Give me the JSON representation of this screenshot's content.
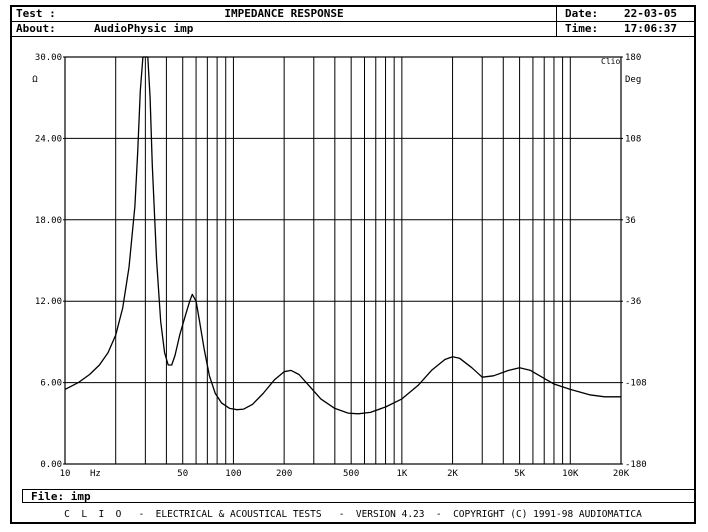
{
  "header": {
    "test_label": "Test :",
    "title": "IMPEDANCE RESPONSE",
    "about_label": "About:",
    "about_value": "AudioPhysic imp",
    "date_label": "Date:",
    "date_value": "22-03-05",
    "time_label": "Time:",
    "time_value": "17:06:37"
  },
  "file": {
    "label": "File:",
    "value": "imp"
  },
  "footer": "C  L  I  O   -  ELECTRICAL & ACOUSTICAL TESTS   -  VERSION 4.23  -  COPYRIGHT (C) 1991-98 AUDIOMATICA",
  "chart_data": {
    "type": "line",
    "title": "IMPEDANCE RESPONSE",
    "brand_label": "Clio",
    "x_scale": "log",
    "xlim": [
      10,
      20000
    ],
    "ylim": [
      0,
      30
    ],
    "y2lim": [
      -180,
      180
    ],
    "x_ticks": [
      {
        "v": 10,
        "label": "10"
      },
      {
        "v": 50,
        "label": "50"
      },
      {
        "v": 100,
        "label": "100"
      },
      {
        "v": 200,
        "label": "200"
      },
      {
        "v": 500,
        "label": "500"
      },
      {
        "v": 1000,
        "label": "1K"
      },
      {
        "v": 2000,
        "label": "2K"
      },
      {
        "v": 5000,
        "label": "5K"
      },
      {
        "v": 10000,
        "label": "10K"
      },
      {
        "v": 20000,
        "label": "20K"
      }
    ],
    "x_unit": "Hz",
    "y_ticks": [
      "0.00",
      "6.00",
      "12.00",
      "18.00",
      "24.00",
      "30.00"
    ],
    "y_unit": "Ω",
    "y2_ticks": [
      "-180",
      "-108",
      "-36",
      "36",
      "108",
      "180"
    ],
    "y2_unit": "Deg",
    "grid": true,
    "series": [
      {
        "points": [
          [
            10,
            5.5
          ],
          [
            12,
            6.0
          ],
          [
            14,
            6.6
          ],
          [
            16,
            7.3
          ],
          [
            18,
            8.2
          ],
          [
            20,
            9.5
          ],
          [
            22,
            11.5
          ],
          [
            24,
            14.5
          ],
          [
            26,
            19.0
          ],
          [
            27,
            23.0
          ],
          [
            28,
            27.5
          ],
          [
            29,
            30.0
          ],
          [
            31,
            30.0
          ],
          [
            32,
            27.0
          ],
          [
            33,
            22.0
          ],
          [
            35,
            15.0
          ],
          [
            37,
            10.5
          ],
          [
            39,
            8.2
          ],
          [
            41,
            7.3
          ],
          [
            43,
            7.3
          ],
          [
            45,
            8.0
          ],
          [
            48,
            9.5
          ],
          [
            52,
            11.0
          ],
          [
            55,
            12.0
          ],
          [
            57,
            12.5
          ],
          [
            60,
            12.0
          ],
          [
            63,
            10.5
          ],
          [
            67,
            8.5
          ],
          [
            72,
            6.5
          ],
          [
            78,
            5.2
          ],
          [
            85,
            4.5
          ],
          [
            95,
            4.1
          ],
          [
            105,
            4.0
          ],
          [
            115,
            4.05
          ],
          [
            130,
            4.4
          ],
          [
            150,
            5.2
          ],
          [
            175,
            6.2
          ],
          [
            200,
            6.8
          ],
          [
            220,
            6.9
          ],
          [
            245,
            6.6
          ],
          [
            280,
            5.8
          ],
          [
            330,
            4.8
          ],
          [
            400,
            4.1
          ],
          [
            480,
            3.75
          ],
          [
            550,
            3.7
          ],
          [
            650,
            3.8
          ],
          [
            800,
            4.2
          ],
          [
            1000,
            4.8
          ],
          [
            1250,
            5.8
          ],
          [
            1500,
            6.9
          ],
          [
            1800,
            7.7
          ],
          [
            2000,
            7.9
          ],
          [
            2200,
            7.8
          ],
          [
            2600,
            7.1
          ],
          [
            3000,
            6.4
          ],
          [
            3500,
            6.5
          ],
          [
            4300,
            6.9
          ],
          [
            5000,
            7.1
          ],
          [
            5800,
            6.9
          ],
          [
            6800,
            6.4
          ],
          [
            8000,
            5.9
          ],
          [
            10000,
            5.5
          ],
          [
            13000,
            5.1
          ],
          [
            16000,
            4.95
          ],
          [
            20000,
            4.95
          ]
        ]
      }
    ]
  }
}
